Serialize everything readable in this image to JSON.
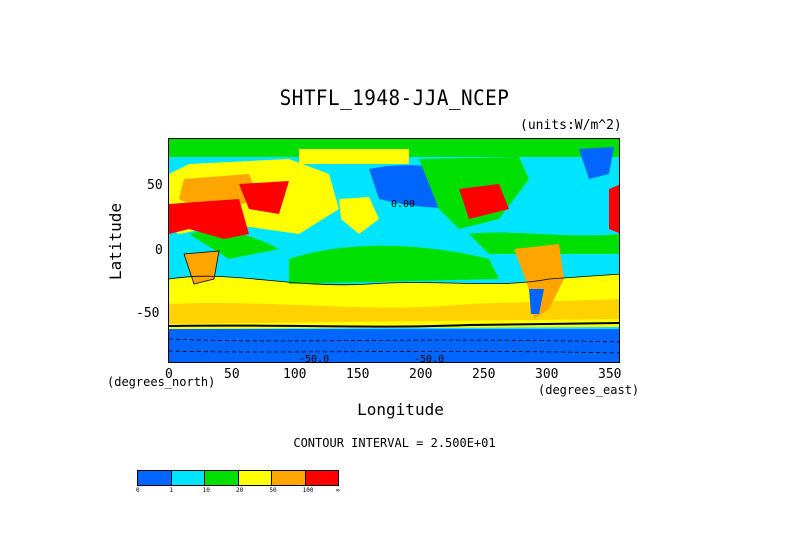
{
  "title": "SHTFL_1948-JJA_NCEP",
  "units": "(units:W/m^2)",
  "contour_text": "CONTOUR INTERVAL = 2.500E+01",
  "axes": {
    "xlabel": "Longitude",
    "ylabel": "Latitude",
    "x_units": "(degrees_east)",
    "y_units": "(degrees_north)",
    "x_ticks": [
      "0",
      "50",
      "100",
      "150",
      "200",
      "250",
      "300",
      "350"
    ],
    "y_ticks": [
      "50",
      "0",
      "-50"
    ]
  },
  "map_labels": [
    "0.00",
    "-50.0",
    "-50.0"
  ],
  "colorbar": {
    "colors": [
      "#0066ff",
      "#00e5ff",
      "#00e000",
      "#ffff00",
      "#ffa500",
      "#ff0000"
    ],
    "labels": [
      "0",
      "1",
      "10",
      "20",
      "50",
      "100",
      "∞"
    ]
  }
}
